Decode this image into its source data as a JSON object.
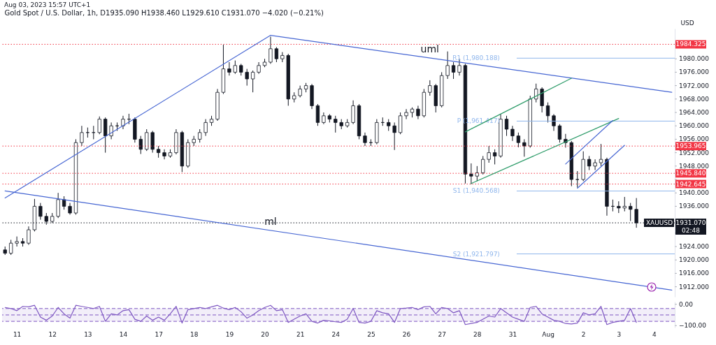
{
  "chart_data": [
    {
      "type": "candlestick",
      "title": "Gold Spot / U.S. Dollar, 1h, D1935.090 H1938.460 L1929.610 C1931.070 −4.020 (−0.21%)",
      "ylabel": "USD",
      "tick_labels": "y",
      "annotations": [
        "Aug 03, 2023 15:57 UTC+1",
        {
          "text": "XAUUSD",
          "y": 1931.07
        }
      ],
      "categories": [
        null,
        null,
        null,
        null,
        null,
        null,
        null,
        null,
        null,
        null,
        null,
        null,
        null,
        null,
        null,
        null,
        null,
        null,
        null,
        null,
        null,
        null,
        null,
        null,
        null,
        null,
        null,
        null,
        null,
        null,
        null,
        null,
        null,
        null,
        null,
        null,
        null,
        null,
        null,
        null,
        null,
        null,
        null,
        null,
        null,
        null,
        null,
        null,
        null,
        null,
        null,
        null,
        null,
        null,
        null,
        null,
        null,
        null,
        null,
        null,
        null,
        null,
        null,
        null,
        null,
        null,
        null,
        null,
        null,
        null,
        null,
        null,
        null,
        null,
        null,
        null,
        null,
        null,
        null,
        null,
        null,
        null,
        null,
        null,
        null,
        null,
        null,
        null,
        null,
        null,
        null,
        null,
        null,
        null,
        null,
        null,
        null,
        null,
        null,
        null,
        null,
        null,
        null,
        null,
        null,
        null,
        null,
        null,
        null,
        null,
        null,
        null,
        null,
        null
      ],
      "ohlc": [
        [
          1923,
          1924,
          1921.5,
          1922
        ],
        [
          1922,
          1926,
          1921.5,
          1925
        ],
        [
          1925,
          1927,
          1924,
          1925.5
        ],
        [
          1925.5,
          1926.5,
          1924,
          1925
        ],
        [
          1925,
          1930,
          1924.5,
          1929
        ],
        [
          1929,
          1938.2,
          1928.5,
          1936
        ],
        [
          1936,
          1937,
          1932,
          1933
        ],
        [
          1933,
          1934,
          1930.5,
          1931.5
        ],
        [
          1931.5,
          1934,
          1931,
          1933
        ],
        [
          1933,
          1940,
          1932.5,
          1938
        ],
        [
          1938,
          1939,
          1935,
          1936
        ],
        [
          1936,
          1937,
          1933.5,
          1934
        ],
        [
          1934,
          1956,
          1933.5,
          1955
        ],
        [
          1955,
          1960,
          1954,
          1958
        ],
        [
          1958,
          1959.5,
          1956.5,
          1958
        ],
        [
          1958,
          1960,
          1956,
          1958
        ],
        [
          1958,
          1962.8,
          1957.5,
          1962
        ],
        [
          1962,
          1962.5,
          1952,
          1957
        ],
        [
          1957,
          1961,
          1956,
          1960
        ],
        [
          1960,
          1961,
          1958.5,
          1960
        ],
        [
          1960,
          1963,
          1959,
          1962
        ],
        [
          1962,
          1963.6,
          1960.5,
          1962
        ],
        [
          1962,
          1962.5,
          1955,
          1956
        ],
        [
          1956,
          1957,
          1951.6,
          1953
        ],
        [
          1953,
          1959,
          1952.5,
          1958
        ],
        [
          1958,
          1958.5,
          1952,
          1953
        ],
        [
          1953,
          1954,
          1950.5,
          1952
        ],
        [
          1952,
          1953,
          1950,
          1951
        ],
        [
          1951,
          1953,
          1950.5,
          1952
        ],
        [
          1952,
          1959,
          1951.5,
          1958
        ],
        [
          1958,
          1958.5,
          1946.2,
          1948
        ],
        [
          1948,
          1956,
          1947.5,
          1955
        ],
        [
          1955,
          1957,
          1954,
          1956
        ],
        [
          1956,
          1959,
          1955,
          1958
        ],
        [
          1958,
          1962,
          1957,
          1961
        ],
        [
          1961,
          1963,
          1960,
          1962
        ],
        [
          1962,
          1971,
          1961.5,
          1970
        ],
        [
          1970,
          1984.2,
          1969.5,
          1977
        ],
        [
          1977,
          1979,
          1975,
          1976
        ],
        [
          1976,
          1979.5,
          1975.5,
          1978
        ],
        [
          1978,
          1978.5,
          1975,
          1976
        ],
        [
          1976,
          1977,
          1972,
          1974
        ],
        [
          1974,
          1976.5,
          1970,
          1976
        ],
        [
          1976,
          1979,
          1975.5,
          1978
        ],
        [
          1978,
          1980,
          1977.5,
          1979
        ],
        [
          1979,
          1986.6,
          1978.5,
          1983
        ],
        [
          1983,
          1983.5,
          1979,
          1980
        ],
        [
          1980,
          1982,
          1979,
          1981
        ],
        [
          1981,
          1981.5,
          1966,
          1968
        ],
        [
          1968,
          1970,
          1967,
          1969
        ],
        [
          1969,
          1972,
          1968.5,
          1971
        ],
        [
          1971,
          1972.8,
          1970,
          1972
        ],
        [
          1972,
          1972.5,
          1965,
          1966
        ],
        [
          1966,
          1966.5,
          1960,
          1961
        ],
        [
          1961,
          1964,
          1960.5,
          1963
        ],
        [
          1963,
          1963.5,
          1961,
          1962
        ],
        [
          1962,
          1963,
          1958,
          1961
        ],
        [
          1961,
          1962,
          1959,
          1960
        ],
        [
          1960,
          1962,
          1959.5,
          1961
        ],
        [
          1961,
          1967.6,
          1960.5,
          1966
        ],
        [
          1966,
          1966.5,
          1956,
          1957
        ],
        [
          1957,
          1958,
          1954,
          1955
        ],
        [
          1955,
          1956,
          1954,
          1955
        ],
        [
          1955,
          1962,
          1954.5,
          1961
        ],
        [
          1961,
          1962.5,
          1960,
          1961
        ],
        [
          1961,
          1962,
          1958.5,
          1960
        ],
        [
          1960,
          1961,
          1952.8,
          1958
        ],
        [
          1958,
          1964,
          1957.5,
          1963
        ],
        [
          1963,
          1965,
          1962,
          1964
        ],
        [
          1964,
          1965.5,
          1962.5,
          1965
        ],
        [
          1965,
          1966,
          1962,
          1963
        ],
        [
          1963,
          1971,
          1962.5,
          1970
        ],
        [
          1970,
          1973.6,
          1969,
          1972
        ],
        [
          1972,
          1972.5,
          1964,
          1966
        ],
        [
          1966,
          1976,
          1965.5,
          1975
        ],
        [
          1975,
          1982.2,
          1974,
          1978
        ],
        [
          1978,
          1979,
          1974,
          1976
        ],
        [
          1976,
          1980,
          1975,
          1978
        ],
        [
          1978,
          1978.5,
          1942.8,
          1945.6
        ],
        [
          1945.6,
          1948.8,
          1942.6,
          1945
        ],
        [
          1945,
          1948,
          1943.5,
          1946
        ],
        [
          1946,
          1951,
          1945.5,
          1950
        ],
        [
          1950,
          1954,
          1949,
          1952
        ],
        [
          1952,
          1953,
          1948.5,
          1951
        ],
        [
          1951,
          1963.6,
          1950.5,
          1962
        ],
        [
          1962,
          1963,
          1957,
          1959
        ],
        [
          1959,
          1960,
          1955.5,
          1957
        ],
        [
          1957,
          1958,
          1953.6,
          1955
        ],
        [
          1955,
          1956,
          1950.8,
          1954
        ],
        [
          1954,
          1969,
          1953.5,
          1968
        ],
        [
          1968,
          1972.6,
          1967,
          1971
        ],
        [
          1971,
          1971.5,
          1964,
          1966
        ],
        [
          1966,
          1967,
          1961,
          1963
        ],
        [
          1963,
          1963.5,
          1958.5,
          1960
        ],
        [
          1960,
          1960.5,
          1955,
          1956
        ],
        [
          1956,
          1957.6,
          1953.5,
          1955
        ],
        [
          1955,
          1955.5,
          1942,
          1944
        ],
        [
          1944,
          1946.5,
          1941.6,
          1944
        ],
        [
          1944,
          1952.4,
          1943.5,
          1950
        ],
        [
          1950,
          1951,
          1946.8,
          1948
        ],
        [
          1948,
          1950,
          1946.8,
          1949
        ],
        [
          1949,
          1954.6,
          1948,
          1950
        ],
        [
          1950,
          1950.5,
          1933.2,
          1936
        ],
        [
          1936,
          1938,
          1934.5,
          1936
        ],
        [
          1936,
          1937.5,
          1934,
          1935.5
        ],
        [
          1935.5,
          1938.8,
          1934.5,
          1936
        ],
        [
          1936,
          1937,
          1931.6,
          1935.09
        ],
        [
          1935.09,
          1938.46,
          1929.61,
          1931.07
        ],
        null,
        null,
        null,
        null,
        null,
        null
      ],
      "series": [
        {
          "type": "line",
          "color": "#4666d3",
          "values": [
            1938.5,
            null,
            null,
            null,
            null,
            null,
            null,
            null,
            null,
            null,
            null,
            null,
            null,
            null,
            null,
            null,
            null,
            null,
            null,
            null,
            null,
            null,
            null,
            null,
            null,
            null,
            null,
            null,
            null,
            null,
            null,
            null,
            null,
            null,
            null,
            null,
            null,
            null,
            null,
            null,
            null,
            null,
            null,
            null,
            null,
            1987.0,
            null,
            null,
            null,
            null,
            null,
            null,
            null,
            null,
            null,
            null,
            null,
            null,
            null,
            null,
            null,
            null,
            null,
            null,
            null,
            null,
            null,
            null,
            null,
            null,
            null,
            null,
            null,
            null,
            null,
            null,
            null,
            null,
            null,
            null,
            null,
            null,
            null,
            null,
            null,
            null,
            null,
            null,
            null,
            null,
            null,
            null,
            null,
            null,
            null,
            null,
            null,
            null,
            null,
            null,
            null,
            null,
            null,
            null,
            null,
            null,
            null,
            null,
            null,
            null,
            null,
            null,
            null,
            null
          ]
        },
        {
          "type": "line",
          "name": "uml",
          "color": "#4666d3",
          "values": [
            null,
            null,
            null,
            null,
            null,
            null,
            null,
            null,
            null,
            null,
            null,
            null,
            null,
            null,
            null,
            null,
            null,
            null,
            null,
            null,
            null,
            null,
            null,
            null,
            null,
            null,
            null,
            null,
            null,
            null,
            null,
            null,
            null,
            null,
            null,
            null,
            null,
            null,
            null,
            null,
            null,
            null,
            null,
            null,
            null,
            1987.0,
            null,
            null,
            null,
            null,
            null,
            null,
            null,
            null,
            null,
            null,
            null,
            null,
            null,
            null,
            null,
            null,
            null,
            null,
            null,
            null,
            null,
            null,
            null,
            null,
            null,
            null,
            null,
            null,
            null,
            null,
            null,
            null,
            null,
            null,
            null,
            null,
            null,
            null,
            null,
            null,
            null,
            null,
            null,
            null,
            null,
            null,
            null,
            null,
            null,
            null,
            null,
            null,
            null,
            null,
            null,
            null,
            null,
            null,
            null,
            null,
            null,
            null,
            null,
            null,
            null,
            null,
            null,
            1970.0
          ]
        },
        {
          "type": "line",
          "name": "ml",
          "color": "#4666d3",
          "values": [
            1940.6,
            null,
            null,
            null,
            null,
            null,
            null,
            null,
            null,
            null,
            null,
            null,
            null,
            null,
            null,
            null,
            null,
            null,
            null,
            null,
            null,
            null,
            null,
            null,
            null,
            null,
            null,
            null,
            null,
            null,
            null,
            null,
            null,
            null,
            null,
            null,
            null,
            null,
            null,
            null,
            null,
            null,
            null,
            null,
            null,
            null,
            null,
            null,
            null,
            null,
            null,
            null,
            null,
            null,
            null,
            null,
            null,
            null,
            null,
            null,
            null,
            null,
            null,
            null,
            null,
            null,
            null,
            null,
            null,
            null,
            null,
            null,
            null,
            null,
            null,
            null,
            null,
            null,
            null,
            null,
            null,
            null,
            null,
            null,
            null,
            null,
            null,
            null,
            null,
            null,
            null,
            null,
            null,
            null,
            null,
            null,
            null,
            null,
            null,
            null,
            null,
            null,
            null,
            null,
            null,
            null,
            null,
            null,
            null,
            null,
            null,
            null,
            null,
            1911.0
          ]
        },
        {
          "type": "line",
          "color": "#2e9c6a",
          "values": [
            null,
            null,
            null,
            null,
            null,
            null,
            null,
            null,
            null,
            null,
            null,
            null,
            null,
            null,
            null,
            null,
            null,
            null,
            null,
            null,
            null,
            null,
            null,
            null,
            null,
            null,
            null,
            null,
            null,
            null,
            null,
            null,
            null,
            null,
            null,
            null,
            null,
            null,
            null,
            null,
            null,
            null,
            null,
            null,
            null,
            null,
            null,
            null,
            null,
            null,
            null,
            null,
            null,
            null,
            null,
            null,
            null,
            null,
            null,
            null,
            null,
            null,
            null,
            null,
            null,
            null,
            null,
            null,
            null,
            null,
            null,
            null,
            null,
            null,
            null,
            null,
            null,
            null,
            1958.2,
            null,
            null,
            null,
            null,
            null,
            null,
            null,
            null,
            null,
            null,
            null,
            null,
            null,
            null,
            null,
            null,
            null,
            1974.2,
            null,
            null,
            null,
            null,
            null,
            null,
            null,
            null,
            null,
            null,
            null,
            null,
            null,
            null,
            null,
            null,
            null
          ]
        },
        {
          "type": "line",
          "color": "#2e9c6a",
          "values": [
            null,
            null,
            null,
            null,
            null,
            null,
            null,
            null,
            null,
            null,
            null,
            null,
            null,
            null,
            null,
            null,
            null,
            null,
            null,
            null,
            null,
            null,
            null,
            null,
            null,
            null,
            null,
            null,
            null,
            null,
            null,
            null,
            null,
            null,
            null,
            null,
            null,
            null,
            null,
            null,
            null,
            null,
            null,
            null,
            null,
            null,
            null,
            null,
            null,
            null,
            null,
            null,
            null,
            null,
            null,
            null,
            null,
            null,
            null,
            null,
            null,
            null,
            null,
            null,
            null,
            null,
            null,
            null,
            null,
            null,
            null,
            null,
            null,
            null,
            null,
            null,
            null,
            null,
            null,
            1942.8,
            null,
            null,
            null,
            null,
            null,
            null,
            null,
            null,
            null,
            null,
            null,
            null,
            null,
            null,
            null,
            null,
            null,
            null,
            null,
            null,
            null,
            null,
            null,
            null,
            1962.2,
            null,
            null,
            null,
            null,
            null,
            null,
            null,
            null,
            null
          ]
        },
        {
          "type": "line",
          "color": "#4666d3",
          "values": [
            null,
            null,
            null,
            null,
            null,
            null,
            null,
            null,
            null,
            null,
            null,
            null,
            null,
            null,
            null,
            null,
            null,
            null,
            null,
            null,
            null,
            null,
            null,
            null,
            null,
            null,
            null,
            null,
            null,
            null,
            null,
            null,
            null,
            null,
            null,
            null,
            null,
            null,
            null,
            null,
            null,
            null,
            null,
            null,
            null,
            null,
            null,
            null,
            null,
            null,
            null,
            null,
            null,
            null,
            null,
            null,
            null,
            null,
            null,
            null,
            null,
            null,
            null,
            null,
            null,
            null,
            null,
            null,
            null,
            null,
            null,
            null,
            null,
            null,
            null,
            null,
            null,
            null,
            null,
            null,
            null,
            null,
            null,
            null,
            null,
            null,
            null,
            null,
            null,
            null,
            null,
            null,
            null,
            null,
            null,
            1948.6,
            null,
            null,
            null,
            null,
            null,
            null,
            null,
            1961.6,
            null,
            null,
            null,
            null,
            null,
            null,
            null,
            null,
            null,
            null
          ]
        },
        {
          "type": "line",
          "color": "#4666d3",
          "values": [
            null,
            null,
            null,
            null,
            null,
            null,
            null,
            null,
            null,
            null,
            null,
            null,
            null,
            null,
            null,
            null,
            null,
            null,
            null,
            null,
            null,
            null,
            null,
            null,
            null,
            null,
            null,
            null,
            null,
            null,
            null,
            null,
            null,
            null,
            null,
            null,
            null,
            null,
            null,
            null,
            null,
            null,
            null,
            null,
            null,
            null,
            null,
            null,
            null,
            null,
            null,
            null,
            null,
            null,
            null,
            null,
            null,
            null,
            null,
            null,
            null,
            null,
            null,
            null,
            null,
            null,
            null,
            null,
            null,
            null,
            null,
            null,
            null,
            null,
            null,
            null,
            null,
            null,
            null,
            null,
            null,
            null,
            null,
            null,
            null,
            null,
            null,
            null,
            null,
            null,
            null,
            null,
            null,
            null,
            null,
            null,
            null,
            1941.4,
            null,
            null,
            null,
            null,
            null,
            null,
            null,
            1954.2,
            null,
            null,
            null,
            null,
            null,
            null,
            null,
            null
          ]
        }
      ],
      "ylim": [
        1909,
        1989
      ],
      "yticks": [
        {
          "value": 1912,
          "label": "1912.000"
        },
        {
          "value": 1916,
          "label": "1916.000"
        },
        {
          "value": 1920,
          "label": "1920.000"
        },
        {
          "value": 1924,
          "label": "1924.000"
        },
        {
          "value": 1928,
          "label": null
        },
        {
          "value": 1932,
          "label": null
        },
        {
          "value": 1936,
          "label": "1936.000"
        },
        {
          "value": 1940,
          "label": "1940.000"
        },
        {
          "value": 1944,
          "label": null
        },
        {
          "value": 1948,
          "label": "1948.000"
        },
        {
          "value": 1952,
          "label": "1952.000"
        },
        {
          "value": 1956,
          "label": "1956.000"
        },
        {
          "value": 1960,
          "label": "1960.000"
        },
        {
          "value": 1964,
          "label": "1964.000"
        },
        {
          "value": 1968,
          "label": "1968.000"
        },
        {
          "value": 1972,
          "label": "1972.000"
        },
        {
          "value": 1976,
          "label": "1976.000"
        },
        {
          "value": 1980,
          "label": "1980.000"
        }
      ],
      "ref_lines": [
        {
          "axis": "y",
          "value": 1984.325,
          "label": "1984.325",
          "color": "#f23645",
          "line_style": "dotted"
        },
        {
          "axis": "y",
          "value": 1953.965,
          "label": "1953.965",
          "color": "#f23645",
          "line_style": "dotted"
        },
        {
          "axis": "y",
          "value": 1945.84,
          "label": "1945.840",
          "color": "#f23645",
          "line_style": "dotted"
        },
        {
          "axis": "y",
          "value": 1942.645,
          "label": "1942.645",
          "color": "#f23645",
          "line_style": "dotted"
        },
        {
          "axis": "y",
          "value": 1931.07,
          "label": "1931.070\n02:48",
          "color": "#131722",
          "line_style": "dotted"
        },
        {
          "axis": "y",
          "value": 1980.188,
          "label": "R1 (1,980.188)",
          "color": "#8fb6ec"
        },
        {
          "axis": "y",
          "value": 1961.417,
          "label": "P (1,961.417)",
          "color": "#8fb6ec"
        },
        {
          "axis": "y",
          "value": 1940.568,
          "label": "S1 (1,940.568)",
          "color": "#8fb6ec"
        },
        {
          "axis": "y",
          "value": 1921.797,
          "label": "S2 (1,921.797)",
          "color": "#8fb6ec"
        }
      ]
    },
    {
      "type": "line",
      "categories": [
        null,
        null,
        "11",
        null,
        null,
        null,
        null,
        null,
        "12",
        null,
        null,
        null,
        null,
        null,
        "13",
        null,
        null,
        null,
        null,
        null,
        "14",
        null,
        null,
        null,
        null,
        null,
        "17",
        null,
        null,
        null,
        null,
        null,
        "18",
        null,
        null,
        null,
        null,
        null,
        "19",
        null,
        null,
        null,
        null,
        null,
        "20",
        null,
        null,
        null,
        null,
        null,
        "21",
        null,
        null,
        null,
        null,
        null,
        "24",
        null,
        null,
        null,
        null,
        null,
        "25",
        null,
        null,
        null,
        null,
        null,
        "26",
        null,
        null,
        null,
        null,
        null,
        "27",
        null,
        null,
        null,
        null,
        null,
        "28",
        null,
        null,
        null,
        null,
        null,
        "31",
        null,
        null,
        null,
        null,
        null,
        "Aug",
        null,
        null,
        null,
        null,
        null,
        "2",
        null,
        null,
        null,
        null,
        null,
        "3",
        null,
        null,
        null,
        null,
        null,
        "4",
        null,
        null,
        null
      ],
      "series": [
        {
          "color": "#7e57c2",
          "values": [
            -15,
            -20,
            -30,
            -10,
            -12,
            -5,
            -60,
            -75,
            -55,
            -15,
            -45,
            -65,
            -5,
            -10,
            -15,
            -20,
            -10,
            -80,
            -45,
            -50,
            -30,
            -25,
            -70,
            -80,
            -55,
            -75,
            -60,
            -75,
            -45,
            -10,
            -88,
            -25,
            -20,
            -15,
            -20,
            -12,
            -5,
            -18,
            -25,
            -15,
            -35,
            -65,
            -50,
            -30,
            -15,
            -5,
            -30,
            -25,
            -85,
            -70,
            -55,
            -45,
            -80,
            -88,
            -75,
            -78,
            -82,
            -85,
            -70,
            -20,
            -85,
            -88,
            -80,
            -30,
            -40,
            -45,
            -85,
            -20,
            -18,
            -15,
            -25,
            -12,
            -10,
            -45,
            -15,
            -20,
            -40,
            -30,
            -95,
            -90,
            -85,
            -70,
            -55,
            -60,
            -20,
            -40,
            -60,
            -70,
            -80,
            -15,
            -10,
            -45,
            -60,
            -75,
            -80,
            -90,
            -92,
            -88,
            -40,
            -50,
            -45,
            -10,
            -95,
            -85,
            -80,
            -75,
            -20,
            -85,
            null,
            null,
            null,
            null,
            null,
            null
          ]
        }
      ],
      "ylim": [
        -109,
        12
      ],
      "yticks": [
        {
          "value": 0,
          "label": "0.00"
        },
        {
          "value": -100,
          "label": "−100.00"
        }
      ],
      "bands": [
        {
          "axis": "y",
          "from": -80,
          "to": -20,
          "color": "#7e57c2"
        }
      ],
      "ref_lines": [
        {
          "axis": "y",
          "value": -20,
          "color": "#7e57c2",
          "line_style": "dashed"
        },
        {
          "axis": "y",
          "value": -50,
          "color": "#7e57c2",
          "line_style": "dashed"
        },
        {
          "axis": "y",
          "value": -80,
          "color": "#7e57c2",
          "line_style": "dashed"
        }
      ]
    }
  ]
}
